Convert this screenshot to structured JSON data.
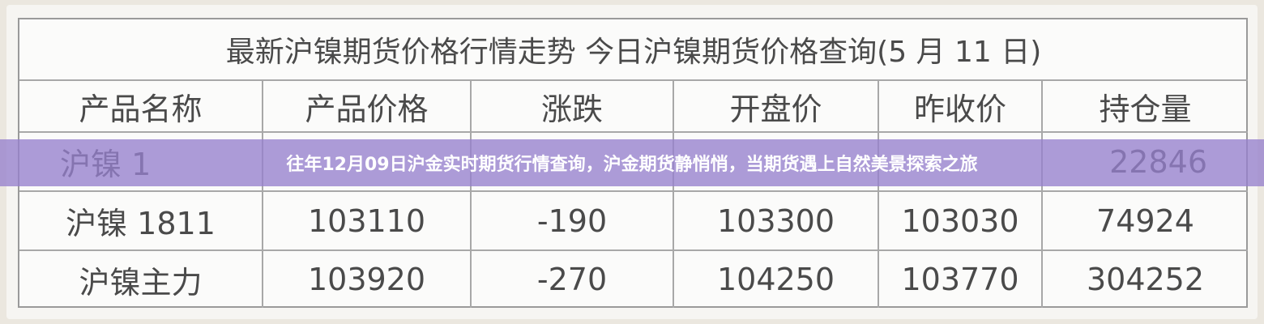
{
  "table": {
    "title": "最新沪镍期货价格行情走势 今日沪镍期货价格查询(5 月 11 日)",
    "header": [
      "产品名称",
      "产品价格",
      "涨跌",
      "开盘价",
      "昨收价",
      "持仓量"
    ],
    "rows": [
      [
        "沪镍 1",
        null,
        null,
        null,
        null,
        "22846"
      ],
      [
        "沪镍 1811",
        "103110",
        "-190",
        "103300",
        "103030",
        "74924"
      ],
      [
        "沪镍主力",
        "103920",
        "-270",
        "104250",
        "103770",
        "304252"
      ]
    ]
  },
  "banner": {
    "text": "往年12月09日沪金实时期货行情查询，沪金期货静悄悄，当期货遇上自然美景探索之旅"
  }
}
